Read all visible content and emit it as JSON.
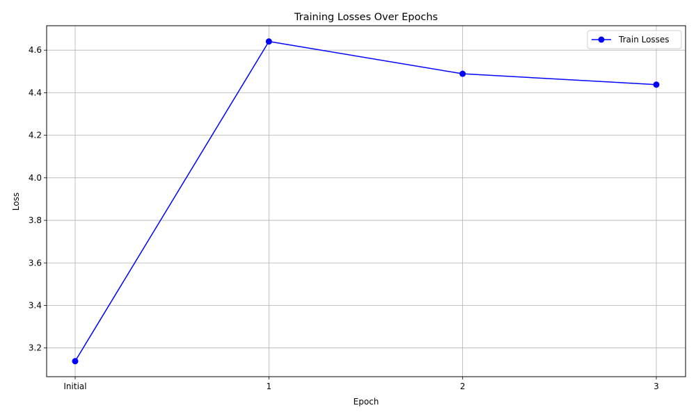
{
  "chart_data": {
    "type": "line",
    "title": "Training Losses Over Epochs",
    "xlabel": "Epoch",
    "ylabel": "Loss",
    "categories": [
      "Initial",
      "1",
      "2",
      "3"
    ],
    "series": [
      {
        "name": "Train Losses",
        "values": [
          3.138,
          4.641,
          4.489,
          4.438
        ],
        "color": "#0000ff",
        "marker": "circle"
      }
    ],
    "ylim": [
      3.065,
      4.715
    ],
    "yticks": [
      3.2,
      3.4,
      3.6,
      3.8,
      4.0,
      4.2,
      4.4,
      4.6
    ],
    "ytick_labels": [
      "3.2",
      "3.4",
      "3.6",
      "3.8",
      "4.0",
      "4.2",
      "4.4",
      "4.6"
    ],
    "grid": true,
    "legend_position": "top-right"
  }
}
